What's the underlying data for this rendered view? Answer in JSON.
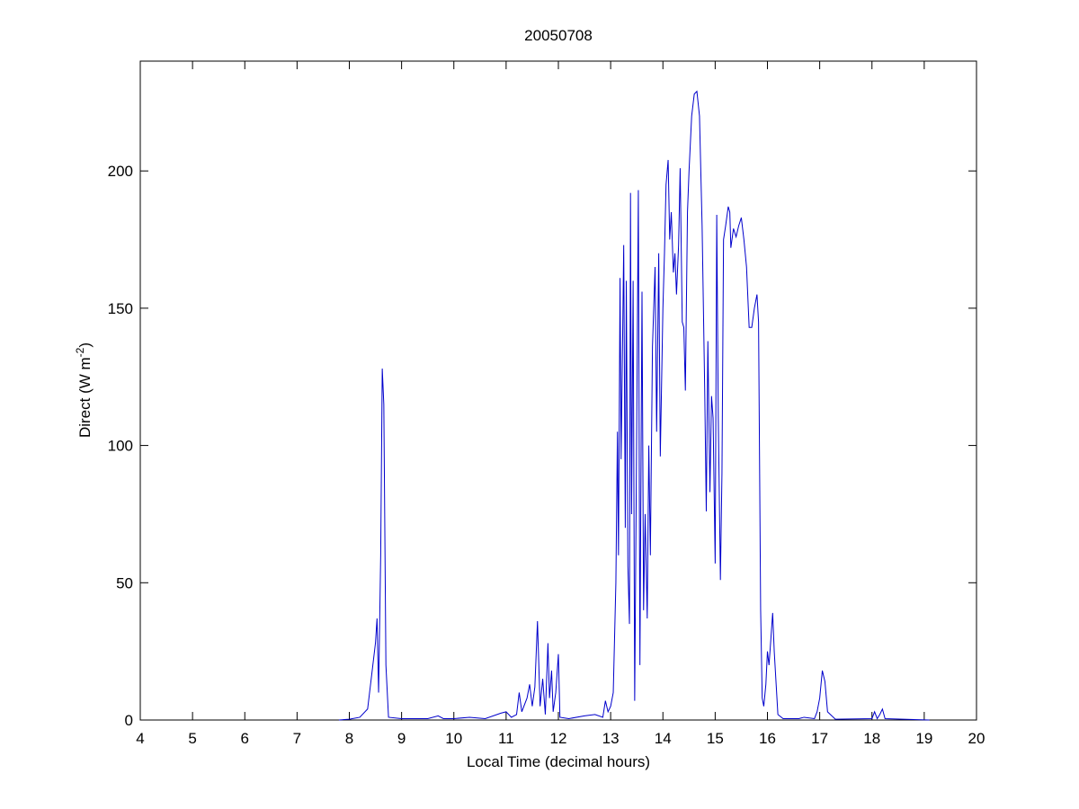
{
  "chart_data": {
    "type": "line",
    "title": "20050708",
    "x_label": "Local Time (decimal hours)",
    "y_label": [
      "Direct (W m",
      "-2",
      ")"
    ],
    "xlim": [
      4,
      20
    ],
    "ylim": [
      0,
      240
    ],
    "xticks": [
      4,
      5,
      6,
      7,
      8,
      9,
      10,
      11,
      12,
      13,
      14,
      15,
      16,
      17,
      18,
      19,
      20
    ],
    "yticks": [
      0,
      50,
      100,
      150,
      200
    ],
    "series": [
      {
        "color": "#0000cc",
        "x": [
          7.8,
          8.0,
          8.2,
          8.35,
          8.45,
          8.5,
          8.53,
          8.56,
          8.6,
          8.63,
          8.66,
          8.7,
          8.75,
          9.0,
          9.5,
          9.7,
          9.8,
          10.0,
          10.3,
          10.6,
          10.9,
          11.0,
          11.1,
          11.2,
          11.25,
          11.3,
          11.4,
          11.45,
          11.5,
          11.55,
          11.6,
          11.65,
          11.7,
          11.75,
          11.8,
          11.83,
          11.87,
          11.9,
          11.95,
          12.0,
          12.03,
          12.2,
          12.5,
          12.7,
          12.85,
          12.9,
          12.95,
          13.0,
          13.05,
          13.1,
          13.13,
          13.15,
          13.18,
          13.2,
          13.23,
          13.25,
          13.28,
          13.3,
          13.33,
          13.36,
          13.38,
          13.4,
          13.43,
          13.46,
          13.5,
          13.53,
          13.56,
          13.6,
          13.63,
          13.66,
          13.7,
          13.73,
          13.76,
          13.8,
          13.85,
          13.88,
          13.92,
          13.95,
          14.0,
          14.03,
          14.06,
          14.1,
          14.13,
          14.16,
          14.2,
          14.23,
          14.26,
          14.3,
          14.33,
          14.37,
          14.4,
          14.43,
          14.47,
          14.5,
          14.55,
          14.6,
          14.65,
          14.7,
          14.75,
          14.8,
          14.83,
          14.86,
          14.9,
          14.93,
          14.96,
          15.0,
          15.03,
          15.06,
          15.1,
          15.13,
          15.16,
          15.2,
          15.25,
          15.28,
          15.3,
          15.35,
          15.4,
          15.45,
          15.5,
          15.55,
          15.6,
          15.65,
          15.7,
          15.75,
          15.8,
          15.83,
          15.87,
          15.9,
          15.93,
          15.97,
          16.0,
          16.03,
          16.06,
          16.1,
          16.13,
          16.2,
          16.3,
          16.6,
          16.7,
          16.9,
          16.95,
          17.0,
          17.05,
          17.1,
          17.15,
          17.3,
          18.0,
          18.05,
          18.1,
          18.15,
          18.2,
          18.25,
          19.1
        ],
        "values": [
          0,
          0.3,
          1,
          4,
          20,
          28,
          37,
          10,
          60,
          128,
          115,
          20,
          1,
          0.5,
          0.5,
          1.5,
          0.5,
          0.5,
          1,
          0.5,
          2.5,
          3,
          1,
          2,
          10,
          3,
          8,
          13,
          5,
          12,
          36,
          5,
          15,
          2,
          28,
          8,
          18,
          3,
          10,
          24,
          1,
          0.5,
          1.5,
          2,
          1,
          7,
          3,
          5,
          10,
          50,
          105,
          60,
          161,
          95,
          140,
          173,
          70,
          160,
          56,
          35,
          192,
          75,
          160,
          7,
          110,
          193,
          20,
          156,
          40,
          75,
          37,
          100,
          60,
          136,
          165,
          105,
          170,
          96,
          150,
          170,
          195,
          204,
          175,
          185,
          163,
          170,
          155,
          173,
          201,
          145,
          143,
          120,
          185,
          200,
          220,
          228,
          229,
          220,
          180,
          120,
          76,
          138,
          83,
          118,
          110,
          57,
          184,
          110,
          51,
          90,
          175,
          180,
          187,
          185,
          172,
          179,
          176,
          180,
          183,
          175,
          165,
          143,
          143,
          150,
          155,
          145,
          40,
          8,
          5,
          13,
          25,
          20,
          28,
          39,
          25,
          2,
          0.5,
          0.5,
          1,
          0.5,
          3,
          8,
          18,
          14,
          3,
          0.3,
          0.5,
          3,
          0.5,
          2,
          4,
          0.5,
          0
        ]
      }
    ]
  }
}
